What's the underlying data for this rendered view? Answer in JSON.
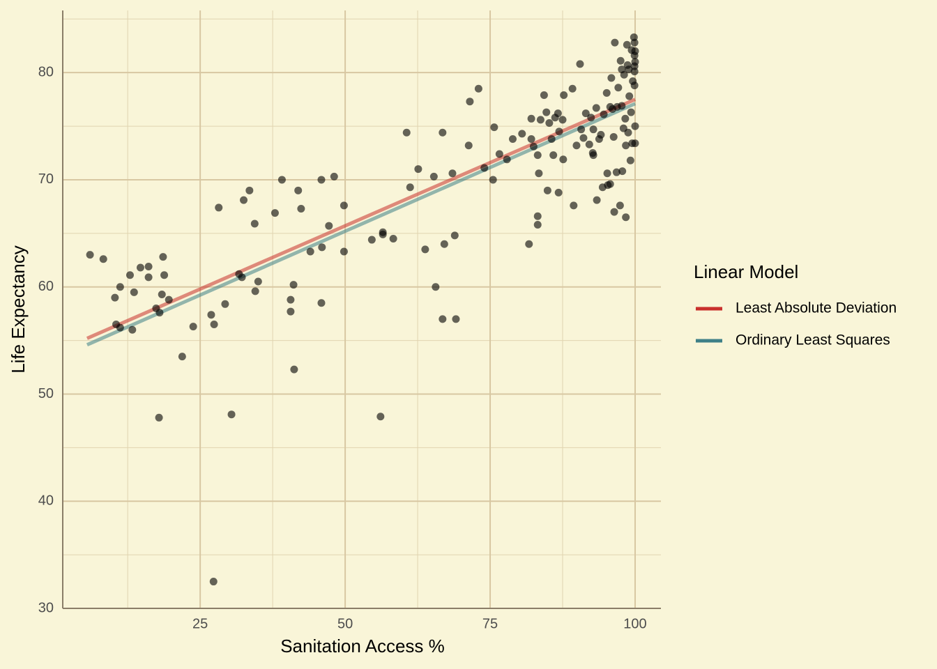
{
  "chart_data": {
    "type": "scatter",
    "x_label": "Sanitation Access %",
    "y_label": "Life Expectancy",
    "xlim": [
      1.3,
      104.45
    ],
    "ylim": [
      30,
      85.8
    ],
    "xticks": [
      25,
      50,
      75,
      100
    ],
    "yticks": [
      30,
      40,
      50,
      60,
      70,
      80
    ],
    "x_minor_ticks": [
      12.5,
      37.5,
      62.5,
      87.5
    ],
    "y_minor_ticks": [
      35,
      45,
      55,
      65,
      75,
      85
    ],
    "grid": true,
    "legend_title": "Linear Model",
    "legend_position": "right",
    "points": {
      "color": "#000000",
      "x": [
        6.0,
        8.3,
        10.3,
        11.2,
        10.5,
        11.2,
        12.9,
        13.6,
        13.3,
        14.7,
        16.1,
        16.1,
        17.4,
        18.0,
        18.6,
        18.8,
        18.4,
        19.6,
        17.9,
        21.9,
        23.8,
        26.9,
        27.4,
        27.3,
        28.2,
        29.3,
        30.4,
        31.7,
        32.2,
        32.5,
        33.5,
        34.4,
        34.5,
        35.0,
        37.9,
        39.1,
        40.6,
        40.6,
        41.1,
        41.2,
        41.9,
        42.4,
        44.0,
        45.9,
        46.0,
        45.9,
        47.2,
        48.1,
        49.8,
        49.8,
        54.6,
        56.1,
        56.5,
        56.5,
        58.3,
        60.6,
        61.2,
        62.6,
        63.8,
        65.3,
        65.6,
        66.8,
        66.8,
        67.1,
        68.5,
        68.9,
        69.1,
        71.3,
        71.5,
        73.0,
        74.0,
        75.5,
        75.7,
        76.6,
        77.9,
        78.9,
        80.5,
        81.7,
        82.1,
        82.1,
        82.5,
        83.2,
        83.4,
        83.2,
        83.2,
        83.7,
        84.3,
        84.7,
        84.9,
        85.2,
        85.6,
        85.9,
        86.2,
        86.7,
        86.8,
        86.9,
        87.5,
        87.6,
        87.7,
        89.2,
        89.4,
        89.9,
        90.5,
        90.7,
        91.1,
        91.5,
        92.1,
        92.4,
        92.7,
        92.8,
        92.8,
        93.3,
        93.4,
        93.8,
        94.1,
        94.4,
        94.6,
        95.1,
        95.2,
        95.3,
        95.7,
        95.7,
        95.9,
        96.1,
        96.3,
        96.4,
        96.5,
        96.8,
        96.9,
        97.1,
        97.4,
        97.5,
        97.7,
        97.8,
        98.0,
        98.1,
        98.3,
        98.4,
        98.4,
        98.6,
        98.7,
        98.8,
        98.9,
        99.0,
        99.2,
        99.3,
        99.4,
        99.5,
        99.6,
        99.8,
        99.9,
        99.9,
        99.9,
        99.9,
        99.9,
        100,
        100,
        100,
        100,
        97.7
      ],
      "values": [
        63.0,
        62.6,
        59.0,
        60.0,
        56.5,
        56.2,
        61.1,
        59.5,
        56.0,
        61.8,
        61.9,
        60.9,
        58.0,
        57.6,
        62.8,
        61.1,
        59.3,
        58.8,
        47.8,
        53.5,
        56.3,
        57.4,
        56.5,
        32.5,
        67.4,
        58.4,
        48.1,
        61.2,
        60.9,
        68.1,
        69.0,
        65.9,
        59.6,
        60.5,
        66.9,
        70.0,
        58.8,
        57.7,
        60.2,
        52.3,
        69.0,
        67.3,
        63.3,
        70.0,
        63.7,
        58.5,
        65.7,
        70.3,
        67.6,
        63.3,
        64.4,
        47.9,
        65.1,
        64.9,
        64.5,
        74.4,
        69.3,
        71.0,
        63.5,
        70.3,
        60.0,
        74.4,
        57.0,
        64.0,
        70.6,
        64.8,
        57.0,
        73.2,
        77.3,
        78.5,
        71.1,
        70.0,
        74.9,
        72.4,
        71.9,
        73.8,
        74.3,
        64.0,
        75.7,
        73.8,
        73.1,
        72.3,
        70.6,
        66.6,
        65.8,
        75.6,
        77.9,
        76.3,
        69.0,
        75.3,
        73.8,
        72.3,
        75.8,
        76.2,
        68.8,
        74.5,
        75.6,
        71.9,
        77.9,
        78.5,
        67.6,
        73.2,
        80.8,
        74.7,
        73.9,
        76.2,
        73.3,
        75.8,
        72.5,
        72.3,
        74.7,
        76.7,
        68.1,
        73.8,
        74.2,
        69.3,
        76.1,
        78.1,
        70.6,
        69.5,
        69.6,
        76.8,
        79.5,
        76.6,
        74.0,
        67.0,
        82.8,
        70.7,
        76.8,
        78.6,
        67.6,
        81.1,
        76.9,
        70.8,
        74.8,
        79.8,
        75.7,
        73.2,
        66.5,
        82.6,
        80.7,
        74.4,
        80.3,
        77.8,
        71.8,
        76.3,
        82.1,
        73.4,
        79.2,
        83.3,
        82.8,
        81.6,
        80.6,
        80.1,
        78.8,
        75.0,
        73.4,
        82.0,
        81.0,
        80.3
      ]
    },
    "lines": [
      {
        "name": "Least Absolute Deviation",
        "color": "#c9302c",
        "x": [
          5.5,
          100
        ],
        "values": [
          55.2,
          77.5
        ]
      },
      {
        "name": "Ordinary Least Squares",
        "color": "#3e8087",
        "x": [
          5.5,
          100
        ],
        "values": [
          54.6,
          77.1
        ]
      }
    ]
  }
}
